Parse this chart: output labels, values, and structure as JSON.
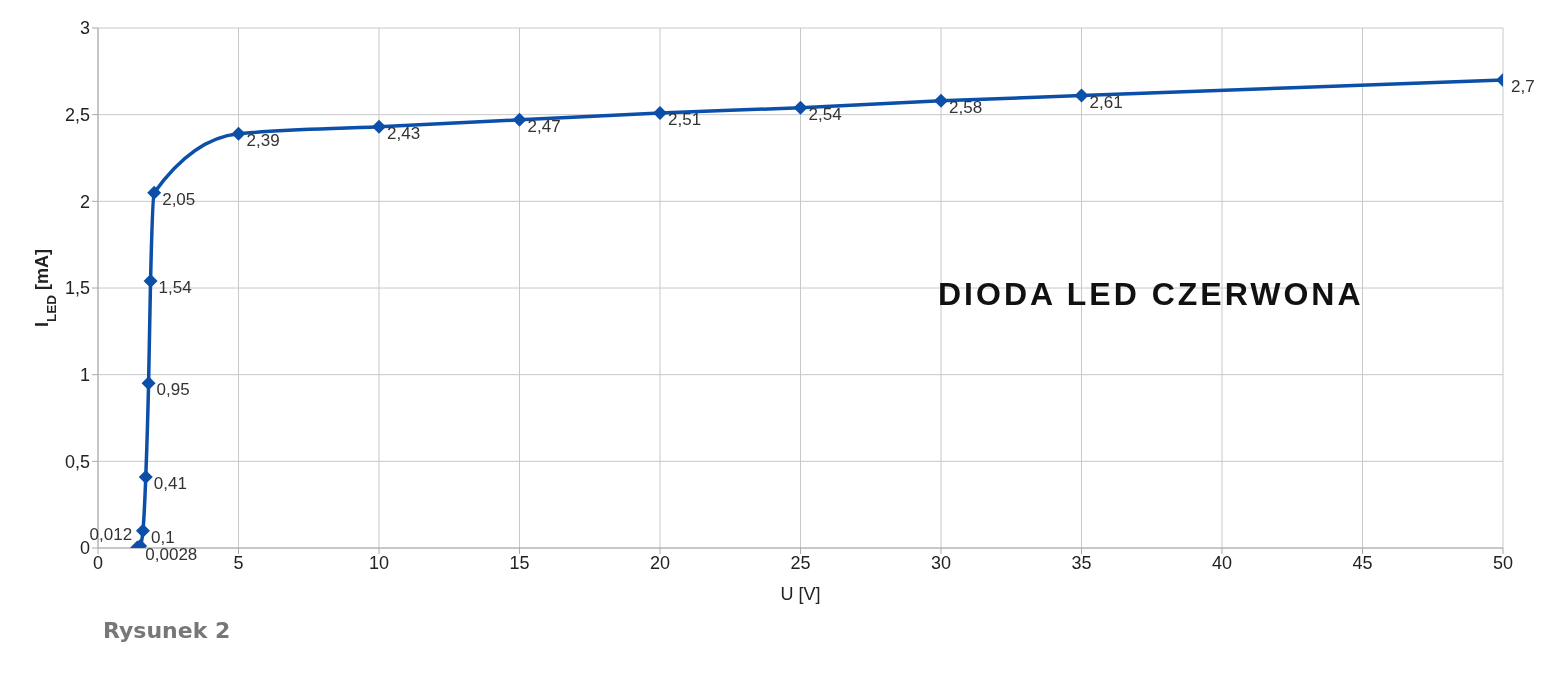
{
  "chart_data": {
    "type": "line",
    "xlabel": "U [V]",
    "ylabel": "I$_{LED}$ [mA]",
    "annotations": [
      "DIODA LED CZERWONA",
      "Rysunek 2"
    ],
    "x": [
      1.4,
      1.5,
      1.6,
      1.7,
      1.8,
      1.87,
      2,
      5,
      10,
      15,
      20,
      25,
      30,
      35,
      50
    ],
    "series": [
      {
        "color": "#0b4fa8",
        "values": [
          0.0028,
          0.012,
          0.1,
          0.41,
          0.95,
          1.54,
          2.05,
          2.39,
          2.43,
          2.47,
          2.51,
          2.54,
          2.58,
          2.61,
          2.7
        ],
        "value_labels": [
          "0,0028",
          "0,012",
          "0,1",
          "0,41",
          "0,95",
          "1,54",
          "2,05",
          "2,39",
          "2,43",
          "2,47",
          "2,51",
          "2,54",
          "2,58",
          "2,61",
          "2,7"
        ]
      }
    ],
    "xlim": [
      0,
      50
    ],
    "xticks": [
      0,
      5,
      10,
      15,
      20,
      25,
      30,
      35,
      40,
      45,
      50
    ],
    "ylim": [
      0,
      3
    ],
    "yticks": [
      0,
      {
        "value": 0.5,
        "label": "0,5"
      },
      1,
      {
        "value": 1.5,
        "label": "1,5"
      },
      2,
      {
        "value": 2.5,
        "label": "2,5"
      },
      3
    ],
    "grid": true,
    "marker": "diamond",
    "line_style": "solid",
    "legend": false
  }
}
